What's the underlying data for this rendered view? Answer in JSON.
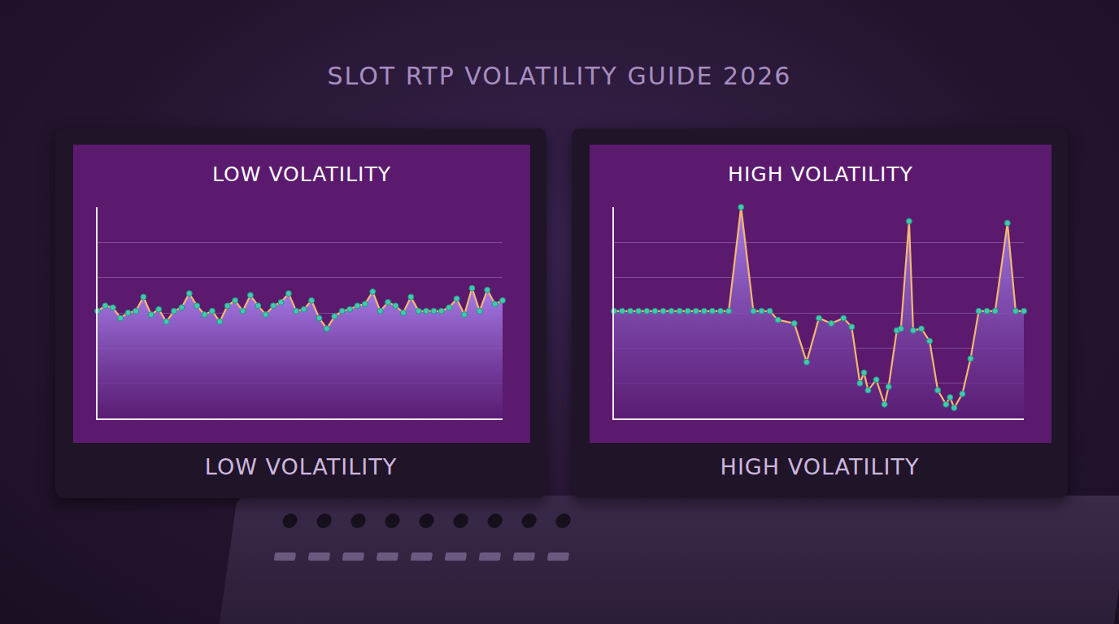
{
  "title": "SLOT RTP VOLATILITY GUIDE 2026",
  "chart_data": [
    {
      "type": "line",
      "title": "LOW VOLATILITY",
      "caption": "LOW VOLATILITY",
      "x": [
        0,
        1,
        2,
        3,
        4,
        5,
        6,
        7,
        8,
        9,
        10,
        11,
        12,
        13,
        14,
        15,
        16,
        17,
        18,
        19,
        20,
        21,
        22,
        23,
        24,
        25,
        26,
        27,
        28,
        29,
        30,
        31,
        32,
        33,
        34,
        35,
        36,
        37,
        38,
        39,
        40,
        41,
        42,
        43,
        44,
        45,
        46,
        47,
        48,
        49,
        50,
        51,
        52,
        53
      ],
      "values": [
        3.05,
        3.2,
        3.15,
        2.85,
        3.0,
        3.05,
        3.45,
        2.95,
        3.1,
        2.75,
        3.05,
        3.15,
        3.55,
        3.2,
        2.95,
        3.05,
        2.75,
        3.2,
        3.35,
        3.05,
        3.5,
        3.2,
        2.95,
        3.2,
        3.3,
        3.55,
        3.05,
        3.1,
        3.35,
        2.85,
        2.55,
        2.9,
        3.05,
        3.1,
        3.2,
        3.25,
        3.6,
        3.05,
        3.3,
        3.2,
        3.0,
        3.45,
        3.05,
        3.05,
        3.05,
        3.05,
        3.15,
        3.4,
        2.95,
        3.7,
        3.05,
        3.65,
        3.25,
        3.35
      ],
      "xlim": [
        0,
        53
      ],
      "ylim": [
        0,
        6
      ],
      "yticks": [
        0,
        1,
        2,
        3,
        4,
        5,
        6
      ],
      "grid": true,
      "tick_labels": false,
      "color": "#f2b870",
      "marker": "circle"
    },
    {
      "type": "line",
      "title": "HIGH VOLATILITY",
      "caption": "HIGH VOLATILITY",
      "x": [
        0,
        2,
        4,
        6,
        8,
        10,
        12,
        14,
        16,
        18,
        20,
        22,
        24,
        26,
        28,
        31,
        34,
        36,
        38,
        40,
        44,
        47,
        50,
        53,
        56,
        58,
        60,
        61,
        62,
        64,
        66,
        67,
        69,
        70,
        72,
        73,
        75,
        77,
        79,
        81,
        82,
        83,
        85,
        87,
        89,
        91,
        93,
        96,
        98,
        100
      ],
      "values": [
        3.05,
        3.05,
        3.05,
        3.05,
        3.05,
        3.05,
        3.05,
        3.05,
        3.05,
        3.05,
        3.05,
        3.05,
        3.05,
        3.05,
        3.05,
        6.0,
        3.05,
        3.05,
        3.05,
        2.8,
        2.7,
        1.6,
        2.85,
        2.7,
        2.85,
        2.6,
        1.0,
        1.3,
        0.8,
        1.1,
        0.4,
        0.9,
        2.5,
        2.55,
        5.6,
        2.5,
        2.55,
        2.2,
        0.8,
        0.4,
        0.6,
        0.3,
        0.7,
        1.7,
        3.05,
        3.05,
        3.05,
        5.55,
        3.05,
        3.05
      ],
      "xlim": [
        0,
        100
      ],
      "ylim": [
        0,
        6
      ],
      "yticks": [
        0,
        1,
        2,
        3,
        4,
        5,
        6
      ],
      "grid": true,
      "tick_labels": false,
      "color": "#f2b870",
      "marker": "circle"
    }
  ]
}
